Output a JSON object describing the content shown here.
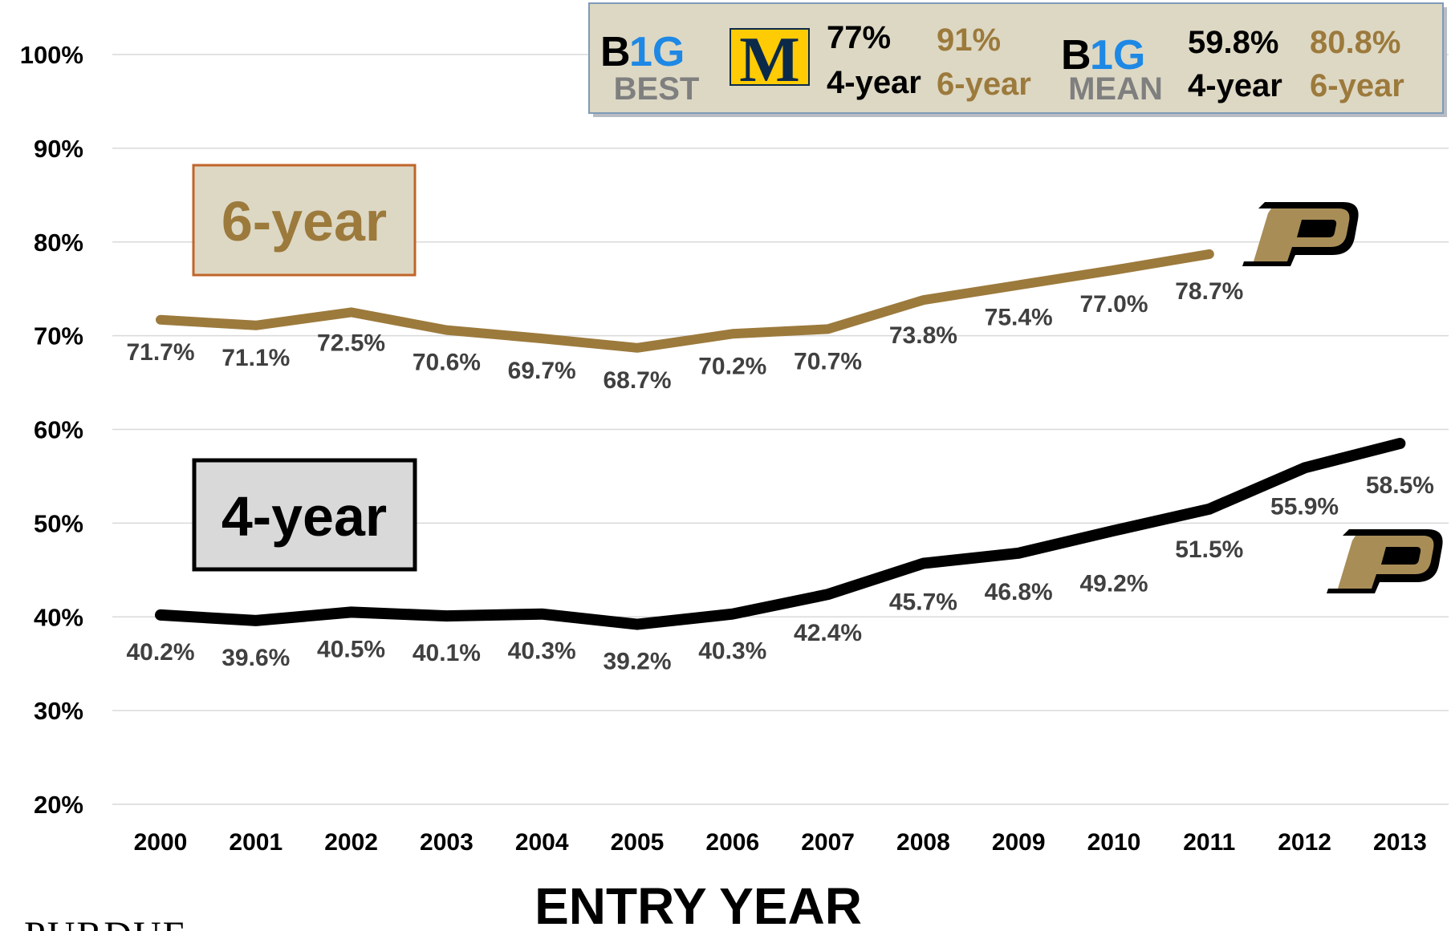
{
  "chart_data": {
    "type": "line",
    "categories": [
      "2000",
      "2001",
      "2002",
      "2003",
      "2004",
      "2005",
      "2006",
      "2007",
      "2008",
      "2009",
      "2010",
      "2011",
      "2012",
      "2013"
    ],
    "series": [
      {
        "name": "6-year",
        "color": "#9c7a3c",
        "values": [
          71.7,
          71.1,
          72.5,
          70.6,
          69.7,
          68.7,
          70.2,
          70.7,
          73.8,
          75.4,
          77.0,
          78.7,
          null,
          null
        ],
        "labels": [
          "71.7%",
          "71.1%",
          "72.5%",
          "70.6%",
          "69.7%",
          "68.7%",
          "70.2%",
          "70.7%",
          "73.8%",
          "75.4%",
          "77.0%",
          "78.7%",
          "",
          ""
        ]
      },
      {
        "name": "4-year",
        "color": "#000000",
        "values": [
          40.2,
          39.6,
          40.5,
          40.1,
          40.3,
          39.2,
          40.3,
          42.4,
          45.7,
          46.8,
          49.2,
          51.5,
          55.9,
          58.5
        ],
        "labels": [
          "40.2%",
          "39.6%",
          "40.5%",
          "40.1%",
          "40.3%",
          "39.2%",
          "40.3%",
          "42.4%",
          "45.7%",
          "46.8%",
          "49.2%",
          "51.5%",
          "55.9%",
          "58.5%"
        ]
      }
    ],
    "ylim": [
      20,
      100
    ],
    "yticks": [
      20,
      30,
      40,
      50,
      60,
      70,
      80,
      90,
      100
    ],
    "ytick_labels": [
      "20%",
      "30%",
      "40%",
      "50%",
      "60%",
      "70%",
      "80%",
      "90%",
      "100%"
    ],
    "xlabel": "ENTRY YEAR",
    "grid": true
  },
  "series_boxes": {
    "six_year": "6-year",
    "four_year": "4-year"
  },
  "legend": {
    "best_logo_line1": "B1G",
    "best_label": "BEST",
    "michigan_logo": "M",
    "best_4yr_value": "77%",
    "best_6yr_value": "91%",
    "best_4yr_label": "4-year",
    "best_6yr_label": "6-year",
    "mean_logo_line1": "B1G",
    "mean_label": "MEAN",
    "mean_4yr_value": "59.8%",
    "mean_6yr_value": "80.8%",
    "mean_4yr_label": "4-year",
    "mean_6yr_label": "6-year"
  },
  "footer": {
    "logo_text": "PURDUE"
  },
  "colors": {
    "gold": "#9c7a3c",
    "legend_bg": "#ddd8c4",
    "box6_bg": "#ddd8c4",
    "box6_border": "#c0652a",
    "box4_bg": "#d9d9d9",
    "michigan_yellow": "#ffcb05",
    "big_blue": "#1e88e5"
  },
  "icons": [
    "purdue-p-logo",
    "big-ten-logo",
    "michigan-m-logo"
  ]
}
